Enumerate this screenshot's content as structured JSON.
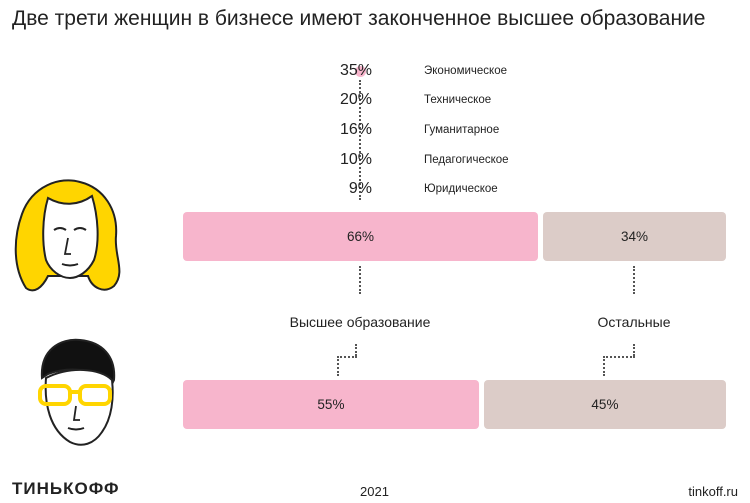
{
  "title": "Две трети женщин в бизнесе имеют законченное высшее образование",
  "colors": {
    "higher_education": "#f7b5cc",
    "other": "#dcccc8",
    "hair_woman": "#ffd500",
    "glasses_man": "#ffd500"
  },
  "icons": {
    "woman": "woman-avatar-icon",
    "man": "man-avatar-icon"
  },
  "chart_data": [
    {
      "type": "bar",
      "stacked": true,
      "orientation": "horizontal",
      "group": "women",
      "categories": [
        "Высшее образование",
        "Остальные"
      ],
      "values": [
        66,
        34
      ],
      "labels": [
        "66%",
        "34%"
      ]
    },
    {
      "type": "bar",
      "stacked": true,
      "orientation": "horizontal",
      "group": "men",
      "categories": [
        "Высшее образование",
        "Остальные"
      ],
      "values": [
        55,
        45
      ],
      "labels": [
        "55%",
        "45%"
      ]
    },
    {
      "type": "table",
      "title": "",
      "rows": [
        {
          "value": 35,
          "label": "35%",
          "name": "Экономическое"
        },
        {
          "value": 20,
          "label": "20%",
          "name": "Техническое"
        },
        {
          "value": 16,
          "label": "16%",
          "name": "Гуманитарное"
        },
        {
          "value": 10,
          "label": "10%",
          "name": "Педагогическое"
        },
        {
          "value": 9,
          "label": "9%",
          "name": "Юридическое"
        }
      ]
    }
  ],
  "category_labels": [
    "Высшее образование",
    "Остальные"
  ],
  "footer": {
    "logo": "ТИНЬКОФФ",
    "year": "2021",
    "site": "tinkoff.ru"
  }
}
